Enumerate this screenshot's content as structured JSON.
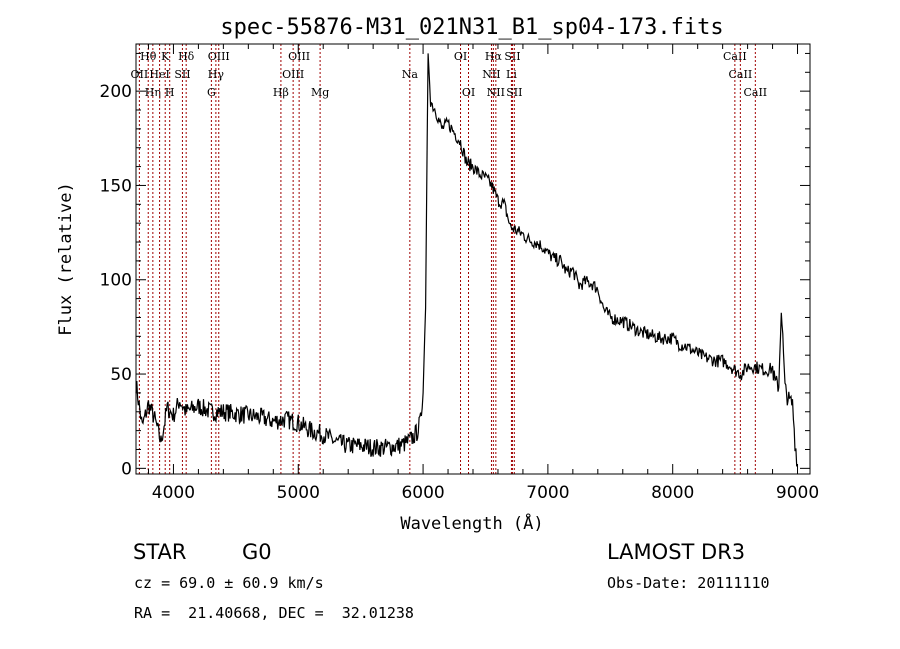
{
  "chart_data": {
    "type": "line",
    "title": "spec-55876-M31_021N31_B1_sp04-173.fits",
    "xlabel": "Wavelength (Å)",
    "ylabel": "Flux (relative)",
    "xlim": [
      3700,
      9100
    ],
    "ylim": [
      -3,
      225
    ],
    "x_ticks": [
      4000,
      5000,
      6000,
      7000,
      8000,
      9000
    ],
    "y_ticks": [
      0,
      50,
      100,
      150,
      200
    ],
    "series": [
      {
        "name": "flux",
        "x": [
          3700,
          3750,
          3800,
          3850,
          3900,
          3950,
          4000,
          4050,
          4100,
          4200,
          4300,
          4400,
          4500,
          4600,
          4700,
          4800,
          4900,
          5000,
          5100,
          5200,
          5300,
          5400,
          5500,
          5600,
          5700,
          5800,
          5850,
          5900,
          5950,
          5980,
          6000,
          6020,
          6040,
          6060,
          6080,
          6100,
          6150,
          6200,
          6250,
          6300,
          6350,
          6400,
          6450,
          6500,
          6550,
          6600,
          6650,
          6700,
          6750,
          6800,
          6850,
          6900,
          6950,
          7000,
          7050,
          7100,
          7150,
          7200,
          7250,
          7300,
          7350,
          7400,
          7450,
          7500,
          7550,
          7600,
          7650,
          7700,
          7750,
          7800,
          7850,
          7900,
          7950,
          8000,
          8050,
          8100,
          8150,
          8200,
          8250,
          8300,
          8350,
          8400,
          8450,
          8500,
          8550,
          8600,
          8650,
          8700,
          8750,
          8800,
          8820,
          8850,
          8870,
          8900,
          8930,
          8960,
          8980,
          9000
        ],
        "values": [
          45,
          22,
          34,
          26,
          14,
          32,
          28,
          36,
          30,
          33,
          30,
          30,
          29,
          28,
          27,
          25,
          26,
          24,
          20,
          18,
          14,
          12,
          12,
          11,
          11,
          12,
          13,
          15,
          19,
          25,
          40,
          85,
          220,
          195,
          192,
          190,
          180,
          183,
          178,
          173,
          162,
          160,
          156,
          154,
          150,
          142,
          140,
          128,
          126,
          124,
          121,
          120,
          118,
          114,
          111,
          110,
          104,
          105,
          97,
          99,
          98,
          95,
          84,
          80,
          79,
          78,
          76,
          74,
          72,
          71,
          70,
          69,
          69,
          69,
          66,
          65,
          63,
          61,
          59,
          58,
          57,
          57,
          55,
          52,
          50,
          54,
          54,
          53,
          52,
          53,
          45,
          44,
          86,
          42,
          36,
          34,
          14,
          2
        ]
      }
    ],
    "spectral_lines": [
      {
        "wavelength": 3727,
        "label": "OII",
        "row": 1
      },
      {
        "wavelength": 3798,
        "label": "Hθ",
        "row": 0
      },
      {
        "wavelength": 3835,
        "label": "Hη",
        "row": 2
      },
      {
        "wavelength": 3889,
        "label": "HeI",
        "row": 1
      },
      {
        "wavelength": 3934,
        "label": "K",
        "row": 0
      },
      {
        "wavelength": 3970,
        "label": "H",
        "row": 2
      },
      {
        "wavelength": 4072,
        "label": "SII",
        "row": 1
      },
      {
        "wavelength": 4102,
        "label": "Hδ",
        "row": 0
      },
      {
        "wavelength": 4304,
        "label": "G",
        "row": 2
      },
      {
        "wavelength": 4340,
        "label": "Hγ",
        "row": 1
      },
      {
        "wavelength": 4363,
        "label": "OIII",
        "row": 0
      },
      {
        "wavelength": 4861,
        "label": "Hβ",
        "row": 2
      },
      {
        "wavelength": 4959,
        "label": "OIII",
        "row": 1
      },
      {
        "wavelength": 5007,
        "label": "OIII",
        "row": 0
      },
      {
        "wavelength": 5175,
        "label": "Mg",
        "row": 2
      },
      {
        "wavelength": 5894,
        "label": "Na",
        "row": 1
      },
      {
        "wavelength": 6300,
        "label": "OI",
        "row": 0
      },
      {
        "wavelength": 6364,
        "label": "OI",
        "row": 2
      },
      {
        "wavelength": 6548,
        "label": "NII",
        "row": 1
      },
      {
        "wavelength": 6563,
        "label": "Hα",
        "row": 0
      },
      {
        "wavelength": 6583,
        "label": "NII",
        "row": 2
      },
      {
        "wavelength": 6708,
        "label": "Li",
        "row": 1
      },
      {
        "wavelength": 6716,
        "label": "SII",
        "row": 0
      },
      {
        "wavelength": 6731,
        "label": "SII",
        "row": 2
      },
      {
        "wavelength": 8498,
        "label": "CaII",
        "row": 0
      },
      {
        "wavelength": 8542,
        "label": "CaII",
        "row": 1
      },
      {
        "wavelength": 8662,
        "label": "CaII",
        "row": 2
      }
    ]
  },
  "colors": {
    "line": "#000000",
    "spectral_line": "#a00000",
    "background": "#ffffff"
  },
  "info": {
    "class": "STAR",
    "subclass": "G0",
    "survey": "LAMOST DR3",
    "cz": "cz = 69.0 ± 60.9 km/s",
    "obs_date": "Obs-Date: 20111110",
    "coords": "RA =  21.40668, DEC =  32.01238"
  }
}
